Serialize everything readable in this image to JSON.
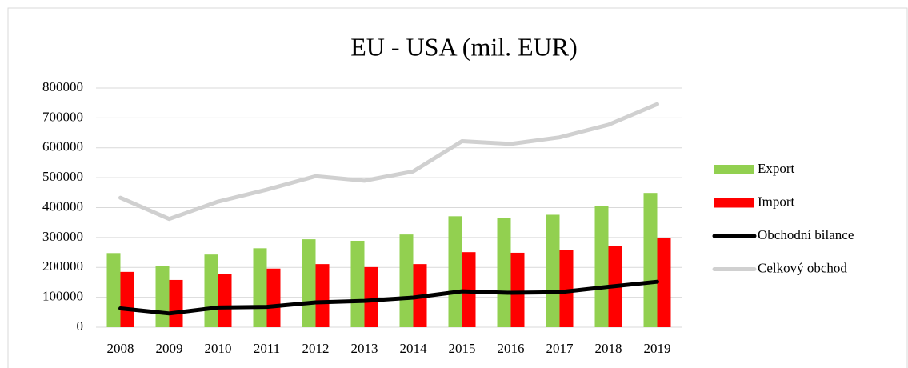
{
  "chart_data": {
    "type": "bar",
    "title": "EU - USA (mil. EUR)",
    "categories": [
      "2008",
      "2009",
      "2010",
      "2011",
      "2012",
      "2013",
      "2014",
      "2015",
      "2016",
      "2017",
      "2018",
      "2019"
    ],
    "series": [
      {
        "name": "Export",
        "type": "bar",
        "color": "#92d050",
        "values": [
          248000,
          204000,
          243000,
          264000,
          294000,
          289000,
          310000,
          371000,
          364000,
          376000,
          406000,
          449000
        ]
      },
      {
        "name": "Import",
        "type": "bar",
        "color": "#ff0000",
        "values": [
          185000,
          158000,
          177000,
          196000,
          211000,
          201000,
          211000,
          251000,
          249000,
          259000,
          271000,
          297000
        ]
      },
      {
        "name": "Obchodní bilance",
        "type": "line",
        "color": "#000000",
        "values": [
          63000,
          46000,
          66000,
          68000,
          83000,
          88000,
          99000,
          120000,
          115000,
          117000,
          135000,
          152000
        ]
      },
      {
        "name": "Celkový obchod",
        "type": "line",
        "color": "#d0d0d0",
        "values": [
          433000,
          362000,
          420000,
          460000,
          505000,
          490000,
          521000,
          622000,
          613000,
          635000,
          677000,
          746000
        ]
      }
    ],
    "ylim": [
      0,
      800000
    ],
    "yticks": [
      0,
      100000,
      200000,
      300000,
      400000,
      500000,
      600000,
      700000,
      800000
    ],
    "grid": true,
    "legend": "right"
  }
}
